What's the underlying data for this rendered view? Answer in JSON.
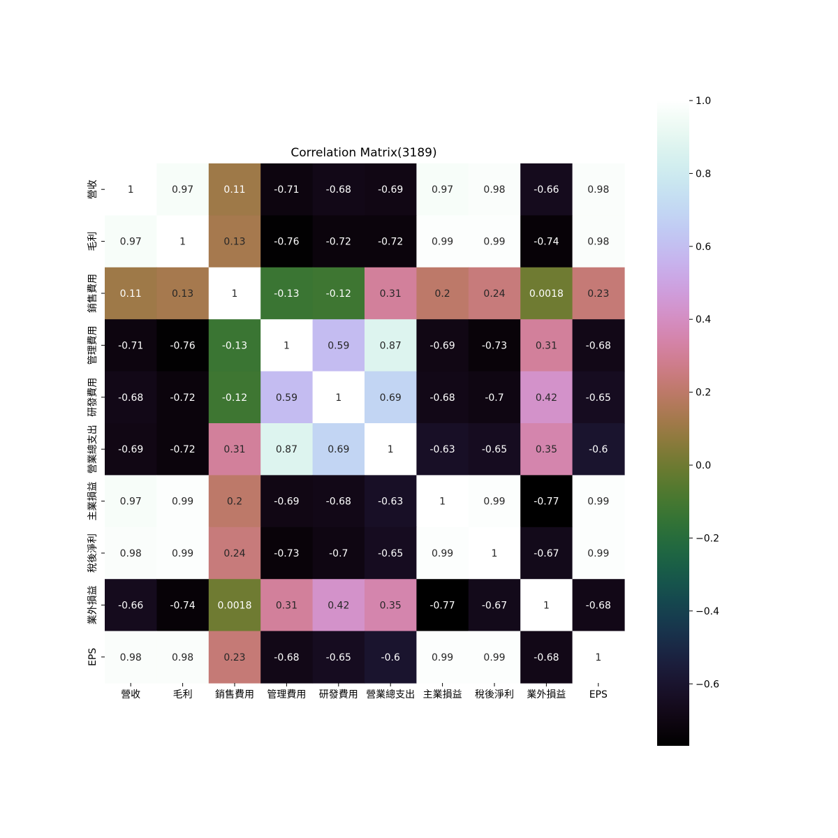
{
  "chart_data": {
    "type": "heatmap",
    "title": "Correlation Matrix(3189)",
    "xlabel": "",
    "ylabel": "",
    "labels": [
      "營收",
      "毛利",
      "銷售費用",
      "管理費用",
      "研發費用",
      "營業總支出",
      "主業損益",
      "稅後淨利",
      "業外損益",
      "EPS"
    ],
    "matrix": [
      [
        1,
        0.97,
        0.11,
        -0.71,
        -0.68,
        -0.69,
        0.97,
        0.98,
        -0.66,
        0.98
      ],
      [
        0.97,
        1,
        0.13,
        -0.76,
        -0.72,
        -0.72,
        0.99,
        0.99,
        -0.74,
        0.98
      ],
      [
        0.11,
        0.13,
        1,
        -0.13,
        -0.12,
        0.31,
        0.2,
        0.24,
        0.0018,
        0.23
      ],
      [
        -0.71,
        -0.76,
        -0.13,
        1,
        0.59,
        0.87,
        -0.69,
        -0.73,
        0.31,
        -0.68
      ],
      [
        -0.68,
        -0.72,
        -0.12,
        0.59,
        1,
        0.69,
        -0.68,
        -0.7,
        0.42,
        -0.65
      ],
      [
        -0.69,
        -0.72,
        0.31,
        0.87,
        0.69,
        1,
        -0.63,
        -0.65,
        0.35,
        -0.6
      ],
      [
        0.97,
        0.99,
        0.2,
        -0.69,
        -0.68,
        -0.63,
        1,
        0.99,
        -0.77,
        0.99
      ],
      [
        0.98,
        0.99,
        0.24,
        -0.73,
        -0.7,
        -0.65,
        0.99,
        1,
        -0.67,
        0.99
      ],
      [
        -0.66,
        -0.74,
        0.0018,
        0.31,
        0.42,
        0.35,
        -0.77,
        -0.67,
        1,
        -0.68
      ],
      [
        0.98,
        0.98,
        0.23,
        -0.68,
        -0.65,
        -0.6,
        0.99,
        0.99,
        -0.68,
        1
      ]
    ],
    "colormap": "cubehelix",
    "vmin": -0.77,
    "vmax": 1.0,
    "colorbar_ticks": [
      1.0,
      0.8,
      0.6,
      0.4,
      0.2,
      0.0,
      -0.2,
      -0.4,
      -0.6
    ],
    "colorbar_tick_labels": [
      "1.0",
      "0.8",
      "0.6",
      "0.4",
      "0.2",
      "0.0",
      "−0.2",
      "−0.4",
      "−0.6"
    ],
    "grid": false,
    "legend": "colorbar-right"
  }
}
